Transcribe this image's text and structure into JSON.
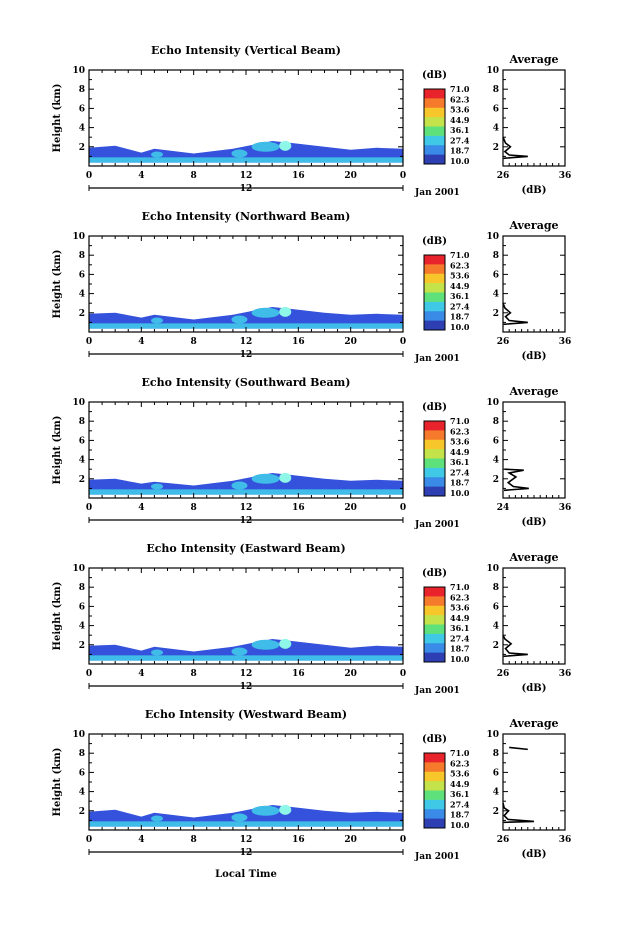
{
  "chart_data": [
    {
      "type": "heatmap",
      "title": "Echo Intensity (Vertical Beam)",
      "ylabel": "Height (km)",
      "xlim": [
        0,
        24
      ],
      "ylim": [
        0,
        10
      ],
      "x_ticks": [
        "0",
        "4",
        "8",
        "12",
        "16",
        "20",
        "0"
      ],
      "y_ticks": [
        "2",
        "4",
        "6",
        "8",
        "10"
      ],
      "date_axis": {
        "label": "12",
        "suffix": "Jan 2001"
      },
      "colorbar": {
        "unit": "(dB)",
        "levels": [
          "71.0",
          "62.3",
          "53.6",
          "44.9",
          "36.1",
          "27.4",
          "18.7",
          "10.0"
        ]
      },
      "echo_top_km": [
        [
          0,
          1.9
        ],
        [
          2,
          2.1
        ],
        [
          4,
          1.4
        ],
        [
          5,
          1.8
        ],
        [
          8,
          1.3
        ],
        [
          11,
          1.8
        ],
        [
          12.5,
          2.2
        ],
        [
          14,
          2.6
        ],
        [
          15.5,
          2.4
        ],
        [
          18,
          2.0
        ],
        [
          20,
          1.7
        ],
        [
          22,
          1.9
        ],
        [
          24,
          1.8
        ]
      ],
      "average_profile": {
        "title": "Average",
        "xlabel": "(dB)",
        "xlim": [
          26,
          36
        ],
        "x_ticks": [
          "26",
          "36"
        ],
        "y_ticks": [
          "2",
          "4",
          "6",
          "8",
          "10"
        ],
        "points": [
          [
            26.1,
            0.8
          ],
          [
            30,
            1.0
          ],
          [
            27,
            1.15
          ],
          [
            26.3,
            1.5
          ],
          [
            27.2,
            2.0
          ],
          [
            26.4,
            2.4
          ],
          [
            26.0,
            3.0
          ]
        ]
      }
    },
    {
      "type": "heatmap",
      "title": "Echo Intensity (Northward Beam)",
      "ylabel": "Height (km)",
      "xlim": [
        0,
        24
      ],
      "ylim": [
        0,
        10
      ],
      "x_ticks": [
        "0",
        "4",
        "8",
        "12",
        "16",
        "20",
        "0"
      ],
      "y_ticks": [
        "2",
        "4",
        "6",
        "8",
        "10"
      ],
      "date_axis": {
        "label": "12",
        "suffix": "Jan 2001"
      },
      "colorbar": {
        "unit": "(dB)",
        "levels": [
          "71.0",
          "62.3",
          "53.6",
          "44.9",
          "36.1",
          "27.4",
          "18.7",
          "10.0"
        ]
      },
      "echo_top_km": [
        [
          0,
          1.9
        ],
        [
          2,
          2.0
        ],
        [
          4,
          1.5
        ],
        [
          5,
          1.8
        ],
        [
          8,
          1.3
        ],
        [
          11,
          1.8
        ],
        [
          12.5,
          2.2
        ],
        [
          14,
          2.6
        ],
        [
          15.5,
          2.4
        ],
        [
          18,
          2.0
        ],
        [
          20,
          1.8
        ],
        [
          22,
          1.9
        ],
        [
          24,
          1.8
        ]
      ],
      "average_profile": {
        "title": "Average",
        "xlabel": "(dB)",
        "xlim": [
          26,
          36
        ],
        "x_ticks": [
          "26",
          "36"
        ],
        "y_ticks": [
          "2",
          "4",
          "6",
          "8",
          "10"
        ],
        "points": [
          [
            26.1,
            0.8
          ],
          [
            30,
            1.0
          ],
          [
            27,
            1.2
          ],
          [
            26.4,
            1.6
          ],
          [
            27.2,
            2.0
          ],
          [
            26.3,
            2.5
          ],
          [
            26.0,
            3.0
          ]
        ]
      }
    },
    {
      "type": "heatmap",
      "title": "Echo Intensity (Southward Beam)",
      "ylabel": "Height (km)",
      "xlim": [
        0,
        24
      ],
      "ylim": [
        0,
        10
      ],
      "x_ticks": [
        "0",
        "4",
        "8",
        "12",
        "16",
        "20",
        "0"
      ],
      "y_ticks": [
        "2",
        "4",
        "6",
        "8",
        "10"
      ],
      "date_axis": {
        "label": "12",
        "suffix": "Jan 2001"
      },
      "colorbar": {
        "unit": "(dB)",
        "levels": [
          "71.0",
          "62.3",
          "53.6",
          "44.9",
          "36.1",
          "27.4",
          "18.7",
          "10.0"
        ]
      },
      "echo_top_km": [
        [
          0,
          1.9
        ],
        [
          2,
          2.0
        ],
        [
          4,
          1.5
        ],
        [
          5,
          1.7
        ],
        [
          8,
          1.3
        ],
        [
          11,
          1.8
        ],
        [
          12.5,
          2.2
        ],
        [
          14,
          2.6
        ],
        [
          15.5,
          2.4
        ],
        [
          18,
          2.0
        ],
        [
          20,
          1.8
        ],
        [
          22,
          1.9
        ],
        [
          24,
          1.8
        ]
      ],
      "average_profile": {
        "title": "Average",
        "xlabel": "(dB)",
        "xlim": [
          24,
          36
        ],
        "x_ticks": [
          "24",
          "36"
        ],
        "y_ticks": [
          "2",
          "4",
          "6",
          "8",
          "10"
        ],
        "points": [
          [
            24.2,
            0.8
          ],
          [
            29,
            1.0
          ],
          [
            26,
            1.2
          ],
          [
            25,
            1.6
          ],
          [
            26.5,
            2.2
          ],
          [
            25.2,
            2.6
          ],
          [
            28,
            2.9
          ],
          [
            24.3,
            3.0
          ]
        ]
      }
    },
    {
      "type": "heatmap",
      "title": "Echo Intensity (Eastward Beam)",
      "ylabel": "Height (km)",
      "xlim": [
        0,
        24
      ],
      "ylim": [
        0,
        10
      ],
      "x_ticks": [
        "0",
        "4",
        "8",
        "12",
        "16",
        "20",
        "0"
      ],
      "y_ticks": [
        "2",
        "4",
        "6",
        "8",
        "10"
      ],
      "date_axis": {
        "label": "12",
        "suffix": "Jan 2001"
      },
      "colorbar": {
        "unit": "(dB)",
        "levels": [
          "71.0",
          "62.3",
          "53.6",
          "44.9",
          "36.1",
          "27.4",
          "18.7",
          "10.0"
        ]
      },
      "echo_top_km": [
        [
          0,
          1.9
        ],
        [
          2,
          2.0
        ],
        [
          4,
          1.4
        ],
        [
          5,
          1.8
        ],
        [
          8,
          1.3
        ],
        [
          11,
          1.8
        ],
        [
          12.5,
          2.2
        ],
        [
          14,
          2.6
        ],
        [
          15.5,
          2.4
        ],
        [
          18,
          2.0
        ],
        [
          20,
          1.7
        ],
        [
          22,
          1.9
        ],
        [
          24,
          1.8
        ]
      ],
      "average_profile": {
        "title": "Average",
        "xlabel": "(dB)",
        "xlim": [
          26,
          36
        ],
        "x_ticks": [
          "26",
          "36"
        ],
        "y_ticks": [
          "2",
          "4",
          "6",
          "8",
          "10"
        ],
        "points": [
          [
            26.1,
            0.8
          ],
          [
            30,
            1.0
          ],
          [
            27,
            1.15
          ],
          [
            26.4,
            1.6
          ],
          [
            27.3,
            2.1
          ],
          [
            26.3,
            2.6
          ],
          [
            26.0,
            3.0
          ]
        ]
      }
    },
    {
      "type": "heatmap",
      "title": "Echo Intensity (Westward Beam)",
      "ylabel": "Height (km)",
      "xlim": [
        0,
        24
      ],
      "ylim": [
        0,
        10
      ],
      "x_ticks": [
        "0",
        "4",
        "8",
        "12",
        "16",
        "20",
        "0"
      ],
      "y_ticks": [
        "2",
        "4",
        "6",
        "8",
        "10"
      ],
      "date_axis": {
        "label": "12",
        "suffix": "Jan 2001"
      },
      "xlabel": "Local Time",
      "colorbar": {
        "unit": "(dB)",
        "levels": [
          "71.0",
          "62.3",
          "53.6",
          "44.9",
          "36.1",
          "27.4",
          "18.7",
          "10.0"
        ]
      },
      "echo_top_km": [
        [
          0,
          1.9
        ],
        [
          2,
          2.1
        ],
        [
          4,
          1.4
        ],
        [
          5,
          1.8
        ],
        [
          8,
          1.3
        ],
        [
          11,
          1.8
        ],
        [
          12.5,
          2.2
        ],
        [
          14,
          2.6
        ],
        [
          15.5,
          2.4
        ],
        [
          18,
          2.0
        ],
        [
          20,
          1.8
        ],
        [
          22,
          1.9
        ],
        [
          24,
          1.8
        ]
      ],
      "average_profile": {
        "title": "Average",
        "xlabel": "(dB)",
        "xlim": [
          26,
          36
        ],
        "x_ticks": [
          "26",
          "36"
        ],
        "y_ticks": [
          "2",
          "4",
          "6",
          "8",
          "10"
        ],
        "points": [
          [
            26.1,
            0.8
          ],
          [
            31,
            0.9
          ],
          [
            26.8,
            1.1
          ],
          [
            26.2,
            1.5
          ],
          [
            26.9,
            2.0
          ],
          [
            26.2,
            2.3
          ],
          [
            26.0,
            2.8
          ]
        ],
        "extra_segment": [
          [
            27,
            8.6
          ],
          [
            30,
            8.4
          ]
        ]
      }
    }
  ],
  "colors": {
    "colorbar": [
      "#e8232c",
      "#f57a2b",
      "#f7c62a",
      "#c4e34a",
      "#5ee07a",
      "#3fc9e6",
      "#3a8ae8",
      "#2d3fb3"
    ],
    "echo_low": "#1f3fd8",
    "echo_mid": "#3fbde8",
    "echo_core": "#8ff7e8"
  }
}
